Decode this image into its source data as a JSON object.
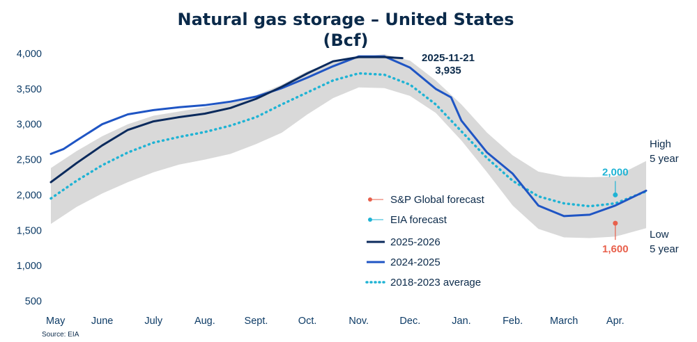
{
  "chart_data": {
    "type": "line",
    "title_line1": "Natural gas storage – United States",
    "title_line2": "(Bcf)",
    "source": "Source: EIA",
    "ylim": [
      500,
      4000
    ],
    "yticks": [
      "4,000",
      "3,500",
      "3,000",
      "2,500",
      "2,000",
      "1,500",
      "1,000",
      "500"
    ],
    "ytick_values": [
      4000,
      3500,
      3000,
      2500,
      2000,
      1500,
      1000,
      500
    ],
    "xticks": [
      "May",
      "June",
      "July",
      "Aug.",
      "Sept.",
      "Oct.",
      "Nov.",
      "Dec.",
      "Jan.",
      "Feb.",
      "March",
      "Apr."
    ],
    "x_domain_months": [
      0,
      11.6
    ],
    "colors": {
      "current": "#0b2a5c",
      "prior": "#1f55c4",
      "average": "#1fb3d4",
      "range": "#d9d9d9",
      "sp_forecast": "#e8604c",
      "eia_forecast": "#1fb3d4"
    },
    "range_band": {
      "x": [
        0,
        0.5,
        1,
        1.5,
        2,
        2.5,
        3,
        3.5,
        4,
        4.5,
        5,
        5.5,
        6,
        6.5,
        7,
        7.5,
        8,
        8.5,
        9,
        9.5,
        10,
        10.5,
        11,
        11.6
      ],
      "high": [
        2380,
        2620,
        2830,
        3000,
        3120,
        3180,
        3240,
        3320,
        3410,
        3560,
        3750,
        3880,
        3950,
        3990,
        3900,
        3620,
        3280,
        2880,
        2560,
        2330,
        2260,
        2250,
        2260,
        2480
      ],
      "low": [
        1590,
        1830,
        2020,
        2180,
        2320,
        2430,
        2500,
        2580,
        2720,
        2880,
        3140,
        3370,
        3520,
        3510,
        3400,
        3160,
        2770,
        2320,
        1850,
        1520,
        1400,
        1390,
        1410,
        1530
      ]
    },
    "series": [
      {
        "name": "2025-2026",
        "style": "solid",
        "x": [
          0,
          0.5,
          1,
          1.5,
          2,
          2.5,
          3,
          3.5,
          4,
          4.5,
          5,
          5.5,
          6,
          6.5,
          6.85
        ],
        "values": [
          2180,
          2450,
          2700,
          2920,
          3040,
          3100,
          3150,
          3230,
          3360,
          3530,
          3720,
          3890,
          3950,
          3950,
          3935
        ]
      },
      {
        "name": "2024-2025",
        "style": "solid",
        "x": [
          0,
          0.25,
          0.5,
          1,
          1.5,
          2,
          2.5,
          3,
          3.5,
          4,
          4.5,
          5,
          5.5,
          6,
          6.5,
          7,
          7.5,
          7.8,
          8,
          8.5,
          9,
          9.5,
          10,
          10.5,
          11,
          11.6
        ],
        "values": [
          2580,
          2650,
          2770,
          3000,
          3140,
          3200,
          3240,
          3270,
          3320,
          3390,
          3510,
          3660,
          3820,
          3960,
          3960,
          3800,
          3500,
          3380,
          3050,
          2600,
          2300,
          1850,
          1700,
          1720,
          1850,
          2060
        ]
      },
      {
        "name": "2018-2023 average",
        "style": "dotted",
        "x": [
          0,
          0.5,
          1,
          1.5,
          2,
          2.5,
          3,
          3.5,
          4,
          4.5,
          5,
          5.5,
          6,
          6.5,
          7,
          7.5,
          8,
          8.5,
          9,
          9.5,
          10,
          10.5,
          11,
          11.6
        ],
        "values": [
          1950,
          2200,
          2420,
          2600,
          2740,
          2820,
          2890,
          2980,
          3100,
          3280,
          3450,
          3620,
          3720,
          3700,
          3560,
          3280,
          2900,
          2520,
          2200,
          1980,
          1880,
          1840,
          1880,
          2050
        ]
      }
    ],
    "forecasts": [
      {
        "name": "S&P Global forecast",
        "x": 11.0,
        "value": 1600,
        "label": "1,600"
      },
      {
        "name": "EIA forecast",
        "x": 11.0,
        "value": 2000,
        "label": "2,000"
      }
    ],
    "annotation": {
      "date": "2025-11-21",
      "value_label": "3,935"
    },
    "high_label": [
      "High",
      "5 year"
    ],
    "low_label": [
      "Low",
      "5 year"
    ],
    "legend": [
      {
        "label": "S&P Global forecast",
        "kind": "dot",
        "color_key": "sp_forecast"
      },
      {
        "label": "EIA forecast",
        "kind": "dot",
        "color_key": "eia_forecast"
      },
      {
        "label": "2025-2026",
        "kind": "solid",
        "color_key": "current"
      },
      {
        "label": "2024-2025",
        "kind": "solid",
        "color_key": "prior"
      },
      {
        "label": "2018-2023 average",
        "kind": "dotted",
        "color_key": "average"
      }
    ]
  }
}
